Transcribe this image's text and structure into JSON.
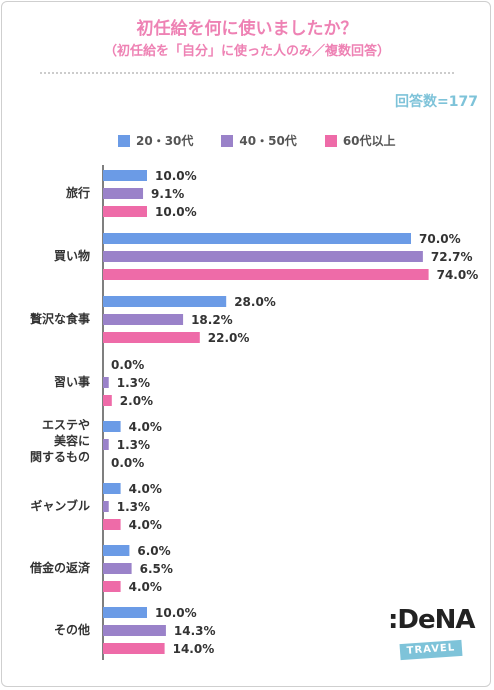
{
  "header": {
    "title": "初任給を何に使いましたか？",
    "subtitle": "（初任給を「自分」に使った人のみ／複数回答）",
    "respondents": "回答数=177"
  },
  "logo": {
    "word": ":DeNA",
    "badge": "TRAVEL"
  },
  "colors": {
    "s20_30": "#6b9be6",
    "s40_50": "#9a82c9",
    "s60": "#ee6ba8",
    "title": "#ee82b4",
    "count": "#7ec3d9"
  },
  "chart_data": {
    "type": "bar",
    "orientation": "horizontal",
    "title": "初任給を何に使いましたか？",
    "subtitle": "（初任給を「自分」に使った人のみ／複数回答）",
    "categories": [
      "旅行",
      "買い物",
      "贅沢な食事",
      "習い事",
      "エステや\n美容に\n関するもの",
      "ギャンブル",
      "借金の返済",
      "その他"
    ],
    "series": [
      {
        "name": "20・30代",
        "color": "#6b9be6",
        "values": [
          10.0,
          70.0,
          28.0,
          0.0,
          4.0,
          4.0,
          6.0,
          10.0
        ]
      },
      {
        "name": "40・50代",
        "color": "#9a82c9",
        "values": [
          9.1,
          72.7,
          18.2,
          1.3,
          1.3,
          1.3,
          6.5,
          14.3
        ]
      },
      {
        "name": "60代以上",
        "color": "#ee6ba8",
        "values": [
          10.0,
          74.0,
          22.0,
          2.0,
          0.0,
          4.0,
          4.0,
          14.0
        ]
      }
    ],
    "unit": "%",
    "legend": "top",
    "grid": false
  }
}
